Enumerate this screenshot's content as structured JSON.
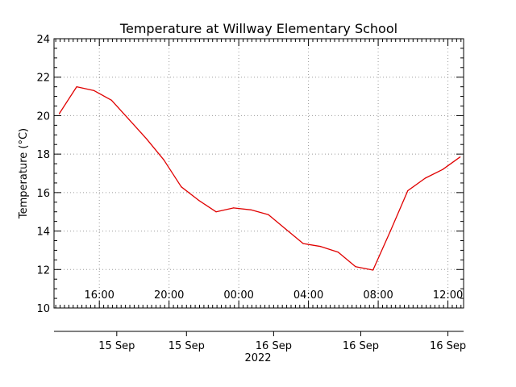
{
  "chart_data": {
    "type": "line",
    "title": "Temperature at Willway Elementary School",
    "ylabel": "Temperature (°C)",
    "xlabel": "2022",
    "ylim": [
      10,
      24
    ],
    "yticks": [
      10,
      12,
      14,
      16,
      18,
      20,
      22,
      24
    ],
    "grid": true,
    "x_axis_top": {
      "hour_range": [
        13.4,
        36.9
      ],
      "ticks": [
        {
          "hour": 16,
          "label": "16:00"
        },
        {
          "hour": 20,
          "label": "20:00"
        },
        {
          "hour": 24,
          "label": "00:00"
        },
        {
          "hour": 28,
          "label": "04:00"
        },
        {
          "hour": 32,
          "label": "08:00"
        },
        {
          "hour": 36,
          "label": "12:00"
        }
      ]
    },
    "x_axis_bottom": {
      "ticks": [
        {
          "hour": 17,
          "label": "15 Sep"
        },
        {
          "hour": 21,
          "label": "15 Sep"
        },
        {
          "hour": 26,
          "label": "16 Sep"
        },
        {
          "hour": 31,
          "label": "16 Sep"
        },
        {
          "hour": 36,
          "label": "16 Sep"
        }
      ]
    },
    "series": [
      {
        "color": "#e00000",
        "points": [
          {
            "hour": 13.7,
            "value": 20.1
          },
          {
            "hour": 14.7,
            "value": 21.5
          },
          {
            "hour": 15.7,
            "value": 21.3
          },
          {
            "hour": 16.7,
            "value": 20.8
          },
          {
            "hour": 17.7,
            "value": 19.8
          },
          {
            "hour": 18.7,
            "value": 18.8
          },
          {
            "hour": 19.7,
            "value": 17.7
          },
          {
            "hour": 20.7,
            "value": 16.3
          },
          {
            "hour": 21.7,
            "value": 15.6
          },
          {
            "hour": 22.7,
            "value": 15.0
          },
          {
            "hour": 23.7,
            "value": 15.2
          },
          {
            "hour": 24.7,
            "value": 15.1
          },
          {
            "hour": 25.7,
            "value": 14.85
          },
          {
            "hour": 26.7,
            "value": 14.1
          },
          {
            "hour": 27.7,
            "value": 13.35
          },
          {
            "hour": 28.7,
            "value": 13.2
          },
          {
            "hour": 29.7,
            "value": 12.9
          },
          {
            "hour": 30.7,
            "value": 12.15
          },
          {
            "hour": 31.7,
            "value": 11.97
          },
          {
            "hour": 32.7,
            "value": 14.0
          },
          {
            "hour": 33.7,
            "value": 16.1
          },
          {
            "hour": 34.7,
            "value": 16.75
          },
          {
            "hour": 35.7,
            "value": 17.2
          },
          {
            "hour": 36.7,
            "value": 17.85
          }
        ]
      }
    ]
  }
}
